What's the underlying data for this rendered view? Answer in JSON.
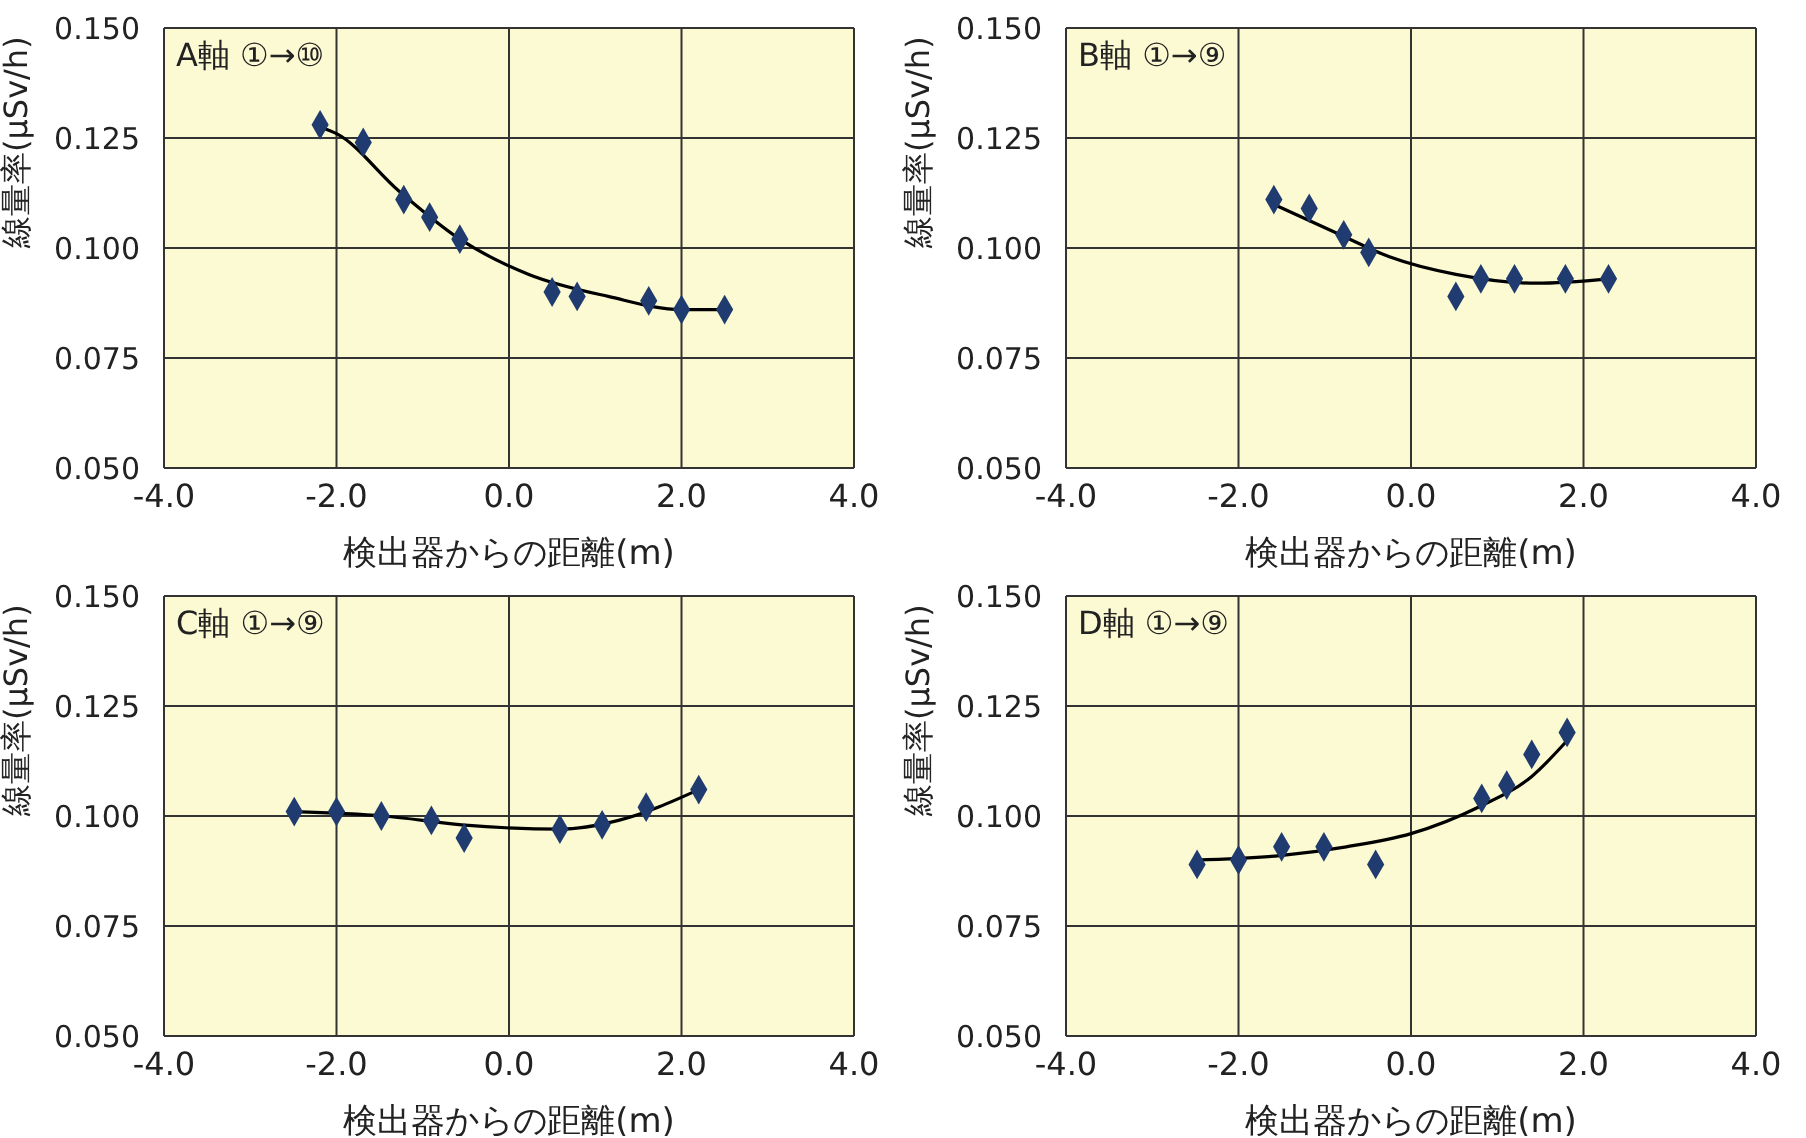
{
  "chart_data": [
    {
      "type": "scatter",
      "xlabel": "検出器からの距離(m)",
      "ylabel": "線量率(μSv/h)",
      "annotations": [
        "A軸 ①→⑩"
      ],
      "grid": true,
      "xlim": [
        -4,
        4
      ],
      "xticks": [
        {
          "value": -4,
          "label": "-4.0"
        },
        {
          "value": -2,
          "label": "-2.0"
        },
        {
          "value": 0,
          "label": "0.0"
        },
        {
          "value": 2,
          "label": "2.0"
        },
        {
          "value": 4,
          "label": "4.0"
        }
      ],
      "ylim": [
        0.05,
        0.15
      ],
      "yticks": [
        {
          "value": 0.05,
          "label": "0.050"
        },
        {
          "value": 0.075,
          "label": "0.075"
        },
        {
          "value": 0.1,
          "label": "0.100"
        },
        {
          "value": 0.125,
          "label": "0.125"
        },
        {
          "value": 0.15,
          "label": "0.150"
        }
      ],
      "series": [
        {
          "color": "#1f3b70",
          "marker": "diamond",
          "x": [
            -2.19,
            -1.69,
            -1.22,
            -0.92,
            -0.57,
            0.5,
            0.79,
            1.62,
            2.0,
            2.5
          ],
          "values": [
            0.128,
            0.124,
            0.111,
            0.107,
            0.102,
            0.09,
            0.089,
            0.088,
            0.086,
            0.086
          ]
        },
        {
          "type": "line",
          "marker": "none",
          "color": "#000000",
          "x": [
            -2.2,
            -2.0,
            -1.28,
            -0.57,
            0.23,
            1.15,
            2.0,
            2.5
          ],
          "values": [
            0.1275,
            0.126,
            0.113,
            0.102,
            0.094,
            0.089,
            0.086,
            0.086
          ]
        }
      ]
    },
    {
      "type": "scatter",
      "xlabel": "検出器からの距離(m)",
      "ylabel": "線量率(μSv/h)",
      "annotations": [
        "B軸 ①→⑨"
      ],
      "grid": true,
      "xlim": [
        -4,
        4
      ],
      "xticks": [
        {
          "value": -4,
          "label": "-4.0"
        },
        {
          "value": -2,
          "label": "-2.0"
        },
        {
          "value": 0,
          "label": "0.0"
        },
        {
          "value": 2,
          "label": "2.0"
        },
        {
          "value": 4,
          "label": "4.0"
        }
      ],
      "ylim": [
        0.05,
        0.15
      ],
      "yticks": [
        {
          "value": 0.05,
          "label": "0.050"
        },
        {
          "value": 0.075,
          "label": "0.075"
        },
        {
          "value": 0.1,
          "label": "0.100"
        },
        {
          "value": 0.125,
          "label": "0.125"
        },
        {
          "value": 0.15,
          "label": "0.150"
        }
      ],
      "series": [
        {
          "color": "#1f3b70",
          "marker": "diamond",
          "x": [
            -1.59,
            -1.18,
            -0.78,
            -0.49,
            0.52,
            0.81,
            1.2,
            1.79,
            2.29
          ],
          "values": [
            0.111,
            0.109,
            0.103,
            0.099,
            0.089,
            0.093,
            0.093,
            0.093,
            0.093
          ]
        },
        {
          "type": "line",
          "marker": "none",
          "color": "#000000",
          "x": [
            -1.6,
            -0.82,
            -0.25,
            0.52,
            1.45,
            2.3
          ],
          "values": [
            0.11,
            0.103,
            0.098,
            0.094,
            0.092,
            0.093
          ]
        }
      ]
    },
    {
      "type": "scatter",
      "xlabel": "検出器からの距離(m)",
      "ylabel": "線量率(μSv/h)",
      "annotations": [
        "C軸 ①→⑨"
      ],
      "grid": true,
      "xlim": [
        -4,
        4
      ],
      "xticks": [
        {
          "value": -4,
          "label": "-4.0"
        },
        {
          "value": -2,
          "label": "-2.0"
        },
        {
          "value": 0,
          "label": "0.0"
        },
        {
          "value": 2,
          "label": "2.0"
        },
        {
          "value": 4,
          "label": "4.0"
        }
      ],
      "ylim": [
        0.05,
        0.15
      ],
      "yticks": [
        {
          "value": 0.05,
          "label": "0.050"
        },
        {
          "value": 0.075,
          "label": "0.075"
        },
        {
          "value": 0.1,
          "label": "0.100"
        },
        {
          "value": 0.125,
          "label": "0.125"
        },
        {
          "value": 0.15,
          "label": "0.150"
        }
      ],
      "series": [
        {
          "color": "#1f3b70",
          "marker": "diamond",
          "x": [
            -2.49,
            -2.0,
            -1.48,
            -0.9,
            -0.52,
            0.59,
            1.08,
            1.59,
            2.2
          ],
          "values": [
            0.101,
            0.101,
            0.1,
            0.099,
            0.095,
            0.097,
            0.098,
            0.102,
            0.106
          ]
        },
        {
          "type": "line",
          "marker": "none",
          "color": "#000000",
          "x": [
            -2.5,
            -1.45,
            -0.55,
            0.59,
            1.27,
            2.2
          ],
          "values": [
            0.101,
            0.1,
            0.098,
            0.097,
            0.099,
            0.106
          ]
        }
      ]
    },
    {
      "type": "scatter",
      "xlabel": "検出器からの距離(m)",
      "ylabel": "線量率(μSv/h)",
      "annotations": [
        "D軸 ①→⑨"
      ],
      "grid": true,
      "xlim": [
        -4,
        4
      ],
      "xticks": [
        {
          "value": -4,
          "label": "-4.0"
        },
        {
          "value": -2,
          "label": "-2.0"
        },
        {
          "value": 0,
          "label": "0.0"
        },
        {
          "value": 2,
          "label": "2.0"
        },
        {
          "value": 4,
          "label": "4.0"
        }
      ],
      "ylim": [
        0.05,
        0.15
      ],
      "yticks": [
        {
          "value": 0.05,
          "label": "0.050"
        },
        {
          "value": 0.075,
          "label": "0.075"
        },
        {
          "value": 0.1,
          "label": "0.100"
        },
        {
          "value": 0.125,
          "label": "0.125"
        },
        {
          "value": 0.15,
          "label": "0.150"
        }
      ],
      "series": [
        {
          "color": "#1f3b70",
          "marker": "diamond",
          "x": [
            -2.48,
            -2.0,
            -1.5,
            -1.01,
            -0.41,
            0.82,
            1.11,
            1.4,
            1.81
          ],
          "values": [
            0.089,
            0.09,
            0.093,
            0.093,
            0.089,
            0.104,
            0.107,
            0.114,
            0.119
          ]
        },
        {
          "type": "line",
          "marker": "none",
          "color": "#000000",
          "x": [
            -2.5,
            -1.52,
            -0.75,
            0.0,
            0.78,
            1.4,
            1.85
          ],
          "values": [
            0.09,
            0.091,
            0.093,
            0.096,
            0.102,
            0.109,
            0.118
          ]
        }
      ]
    }
  ]
}
